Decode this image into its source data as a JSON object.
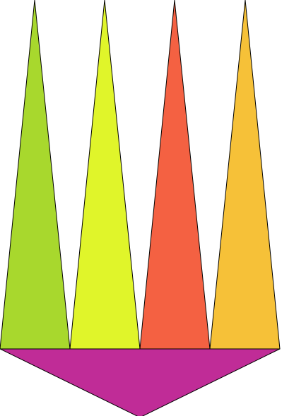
{
  "figure": {
    "shapes": [
      {
        "name": "green-spike",
        "color": "#a8d82d"
      },
      {
        "name": "yellow-spike",
        "color": "#e0f52a"
      },
      {
        "name": "orange-spike",
        "color": "#f46142"
      },
      {
        "name": "amber-spike",
        "color": "#f6c138"
      },
      {
        "name": "magenta-base",
        "color": "#c02c97"
      }
    ]
  }
}
